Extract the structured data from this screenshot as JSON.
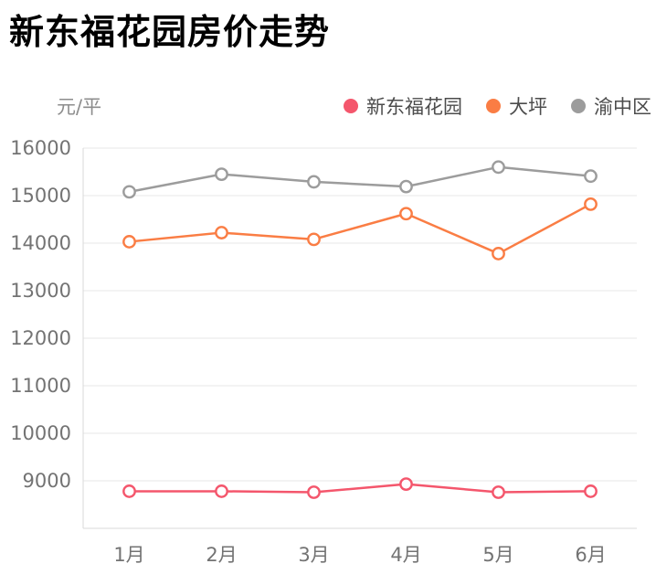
{
  "title": "新东福花园房价走势",
  "y_unit_label": "元/平",
  "chart_data": {
    "type": "line",
    "title": "新东福花园房价走势",
    "xlabel": "",
    "ylabel": "元/平",
    "categories": [
      "1月",
      "2月",
      "3月",
      "4月",
      "5月",
      "6月"
    ],
    "series": [
      {
        "name": "新东福花园",
        "color": "#f4566c",
        "values": [
          8780,
          8780,
          8760,
          8930,
          8760,
          8780
        ]
      },
      {
        "name": "大坪",
        "color": "#fa7d44",
        "values": [
          14030,
          14220,
          14080,
          14620,
          13780,
          14820
        ]
      },
      {
        "name": "渝中区",
        "color": "#9c9c9c",
        "values": [
          15080,
          15450,
          15290,
          15190,
          15600,
          15410
        ]
      }
    ],
    "ylim": [
      8000,
      16000
    ],
    "yticks": [
      9000,
      10000,
      11000,
      12000,
      13000,
      14000,
      15000,
      16000
    ],
    "grid": true,
    "legend_position": "top-right",
    "marker": "open-circle"
  },
  "colors": {
    "grid_line": "#e7e7e7",
    "axis_line": "#dadada",
    "tick_text": "#737373",
    "legend_text": "#4c4c4c",
    "unit_text": "#8d8d8d",
    "title_text": "#000000",
    "marker_fill": "#ffffff"
  }
}
